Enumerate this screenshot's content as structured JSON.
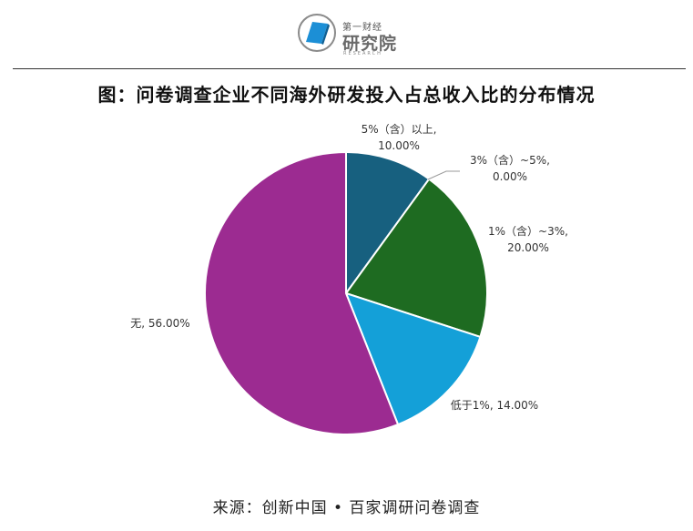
{
  "logo": {
    "small": "第一财经",
    "big": "研究院",
    "en": "RESEARCH"
  },
  "title": "图：问卷调查企业不同海外研发投入占总收入比的分布情况",
  "source": "来源：创新中国 • 百家调研问卷调查",
  "colors": {
    "slice_5plus": "#17607f",
    "slice_3to5": "#8e9a2a",
    "slice_1to3": "#1e6b21",
    "slice_lt1": "#14a0d8",
    "slice_none": "#9c2b91"
  },
  "chart_data": {
    "type": "pie",
    "categories": [
      "5%（含）以上",
      "3%（含）~5%",
      "1%（含）~3%",
      "低于1%",
      "无"
    ],
    "values": [
      10.0,
      0.0,
      20.0,
      14.0,
      56.0
    ],
    "labels": [
      [
        "5%（含）以上,",
        "10.00%"
      ],
      [
        "3%（含）~5%,",
        "0.00%"
      ],
      [
        "1%（含）~3%,",
        "20.00%"
      ],
      [
        "低于1%, 14.00%"
      ],
      [
        "无, 56.00%"
      ]
    ],
    "start": "12 o'clock",
    "direction": "clockwise"
  }
}
